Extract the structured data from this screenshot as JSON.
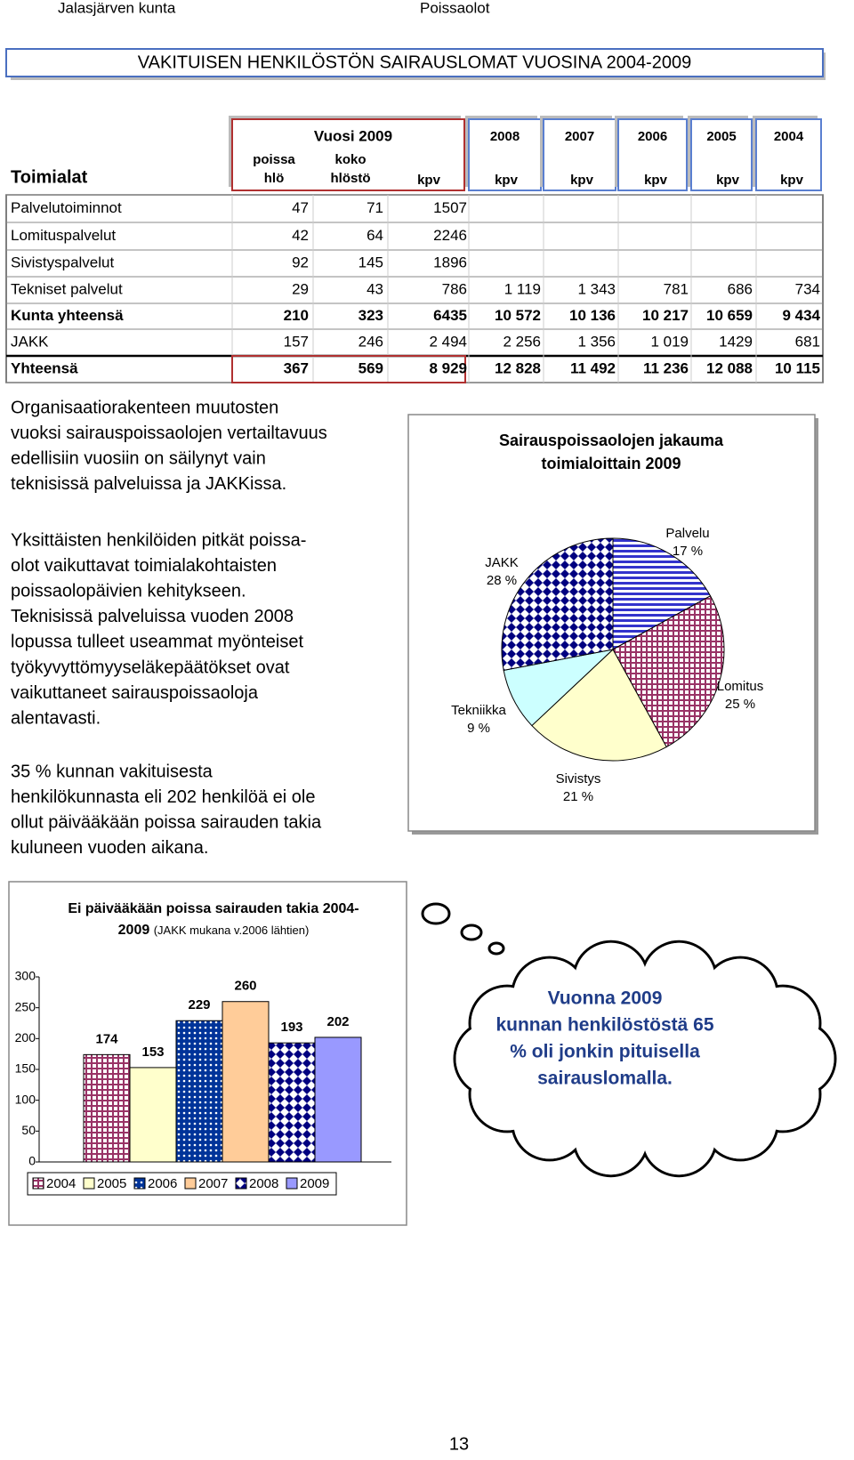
{
  "header": {
    "left": "Jalasjärven kunta",
    "right": "Poissaolot"
  },
  "title": "VAKITUISEN HENKILÖSTÖN SAIRAUSLOMAT VUOSINA 2004-2009",
  "table": {
    "group_label": "Vuosi 2009",
    "years": [
      "2008",
      "2007",
      "2006",
      "2005",
      "2004"
    ],
    "columns": [
      "Toimialat",
      [
        "poissa",
        "hlö"
      ],
      [
        "koko",
        "hlöstö"
      ],
      "kpv",
      "kpv",
      "kpv",
      "kpv",
      "kpv",
      "kpv"
    ],
    "rows": [
      [
        "Palvelutoiminnot",
        "47",
        "71",
        "1507",
        null,
        null,
        null,
        null,
        null
      ],
      [
        "Lomituspalvelut",
        "42",
        "64",
        "2246",
        null,
        null,
        null,
        null,
        null
      ],
      [
        "Sivistyspalvelut",
        "92",
        "145",
        "1896",
        null,
        null,
        null,
        null,
        null
      ],
      [
        "Tekniset palvelut",
        "29",
        "43",
        "786",
        "1 119",
        "1 343",
        "781",
        "686",
        "734"
      ],
      [
        "Kunta yhteensä",
        "210",
        "323",
        "6435",
        "10 572",
        "10 136",
        "10 217",
        "10 659",
        "9 434"
      ],
      [
        "JAKK",
        "157",
        "246",
        "2 494",
        "2 256",
        "1 356",
        "1 019",
        "1429",
        "681"
      ],
      [
        "Yhteensä",
        "367",
        "569",
        "8 929",
        "12 828",
        "11 492",
        "11 236",
        "12 088",
        "10 115"
      ]
    ]
  },
  "paragraphs": [
    [
      "Organisaatiorakenteen muutosten",
      "vuoksi sairauspoissaolojen vertailtavuus",
      "edellisiin vuosiin on säilynyt vain",
      "teknisissä palveluissa ja JAKKissa."
    ],
    [
      "Yksittäisten henkilöiden pitkät poissa-",
      "olot vaikuttavat toimialakohtaisten",
      "poissaolopäivien kehitykseen.",
      "Teknisissä palveluissa vuoden 2008",
      "lopussa tulleet useammat myönteiset",
      "työkyvyttömyyseläkepäätökset ovat",
      "vaikuttaneet sairauspoissaoloja",
      "alentavasti."
    ],
    [
      "35 % kunnan vakituisesta",
      "henkilökunnasta eli 202 henkilöä ei ole",
      "ollut päivääkään poissa sairauden takia",
      "kuluneen vuoden aikana."
    ]
  ],
  "chart_data": [
    {
      "type": "pie",
      "title": "Sairauspoissaolojen jakauma toimialoittain 2009",
      "categories": [
        "Palvelu",
        "Lomitus",
        "Sivistys",
        "Tekniikka",
        "JAKK"
      ],
      "values": [
        17,
        25,
        21,
        9,
        28
      ],
      "value_labels": [
        "17 %",
        "25 %",
        "21 %",
        "9 %",
        "28 %"
      ],
      "colors": [
        "#3333cc",
        "#993366",
        "#ffffcc",
        "#ccffff",
        "#000080"
      ],
      "patterns": [
        "stripes",
        "grid",
        null,
        null,
        "diamonds"
      ]
    },
    {
      "type": "bar",
      "title": "Ei päivääkään poissa sairauden takia 2004-2009",
      "subtitle": "(JAKK mukana v.2006 lähtien)",
      "categories": [
        "2004",
        "2005",
        "2006",
        "2007",
        "2008",
        "2009"
      ],
      "values": [
        174,
        153,
        229,
        260,
        193,
        202
      ],
      "colors": [
        "#993366",
        "#ffffcc",
        "#003399",
        "#ffcc99",
        "#000080",
        "#9999ff"
      ],
      "patterns": [
        "grid",
        null,
        "dots",
        null,
        "diamonds",
        null
      ],
      "ylim": [
        0,
        300
      ],
      "yticks": [
        0,
        50,
        100,
        150,
        200,
        250,
        300
      ],
      "legend": "bottom"
    }
  ],
  "callout": [
    "Vuonna 2009",
    "kunnan henkilöstöstä 65",
    "% oli jonkin pituisella",
    "sairauslomalla."
  ],
  "page_number": "13"
}
